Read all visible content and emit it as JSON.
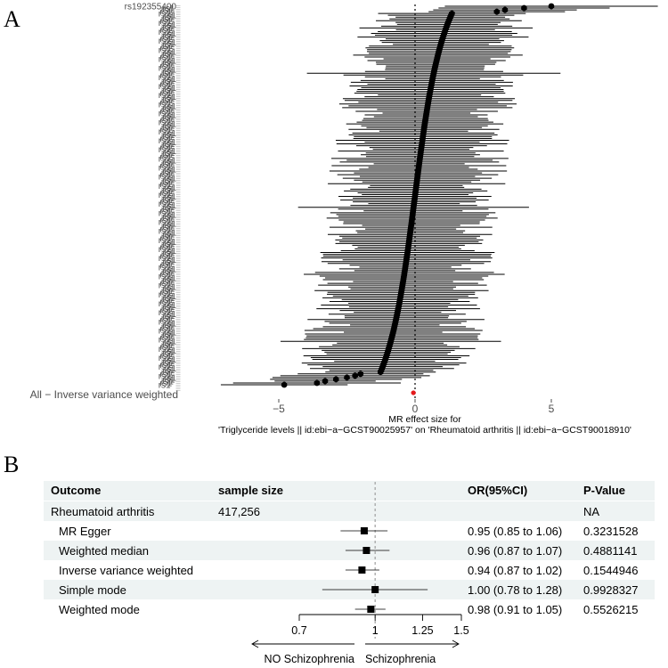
{
  "panel_a": {
    "label": "A",
    "overall_label": "All − Inverse variance weighted",
    "snp_labels": [
      "rs1",
      "rs1",
      "rs1",
      "rs1",
      "rs1",
      "rs1",
      "rs1",
      "rs1",
      "rs192355400"
    ],
    "xlabel_line1": "MR effect size for",
    "xlabel_line2": "'Triglyceride levels || id:ebi−a−GCST90025957' on 'Rheumatoid arthritis || id:ebi−a−GCST90018910'",
    "x_ticks": [
      "−5",
      "0",
      "5"
    ]
  },
  "panel_b": {
    "label": "B",
    "headers": {
      "outcome": "Outcome",
      "sample_size": "sample size",
      "or": "OR(95%CI)",
      "p": "P-Value"
    },
    "rows": [
      {
        "outcome": "Rheumatoid arthritis",
        "sample_size": "417,256",
        "or": "",
        "p": "NA"
      },
      {
        "outcome": "MR Egger",
        "sample_size": "",
        "or": "0.95 (0.85 to 1.06)",
        "p": "0.3231528"
      },
      {
        "outcome": "Weighted median",
        "sample_size": "",
        "or": "0.96 (0.87 to 1.07)",
        "p": "0.4881141"
      },
      {
        "outcome": "Inverse variance weighted",
        "sample_size": "",
        "or": "0.94 (0.87 to 1.02)",
        "p": "0.1544946"
      },
      {
        "outcome": "Simple mode",
        "sample_size": "",
        "or": "1.00 (0.78 to 1.28)",
        "p": "0.9928327"
      },
      {
        "outcome": "Weighted mode",
        "sample_size": "",
        "or": "0.98 (0.91 to 1.05)",
        "p": "0.5526215"
      }
    ],
    "x_ticks": [
      "0.7",
      "1",
      "1.25",
      "1.5"
    ],
    "left_label": "NO Schizophrenia",
    "right_label": "Schizophrenia"
  },
  "colors": {
    "point": "#000000",
    "ci_line": "#000000",
    "overall": "#e41a1c",
    "axis_text": "#4d4d4d",
    "stripe": "#eef3f3"
  },
  "chart_data": [
    {
      "type": "scatter",
      "title": "",
      "xlabel": "MR effect size for 'Triglyceride levels || id:ebi−a−GCST90025957' on 'Rheumatoid arthritis || id:ebi−a−GCST90018910'",
      "ylabel": "",
      "xlim": [
        -7.5,
        8.5
      ],
      "xticks": [
        -5,
        0,
        5
      ],
      "reference_line": 0,
      "n_snps": 210,
      "effect_range": [
        -4.8,
        5.0
      ],
      "overall": {
        "label": "All − Inverse variance weighted",
        "estimate": -0.06,
        "ci": [
          -0.14,
          0.02
        ]
      }
    },
    {
      "type": "forest",
      "title": "",
      "log_scale": true,
      "xlim": [
        0.7,
        1.5
      ],
      "xticks": [
        0.7,
        1,
        1.25,
        1.5
      ],
      "reference_line": 1,
      "series": [
        {
          "name": "MR Egger",
          "or": 0.95,
          "lower": 0.85,
          "upper": 1.06,
          "p": 0.3231528
        },
        {
          "name": "Weighted median",
          "or": 0.96,
          "lower": 0.87,
          "upper": 1.07,
          "p": 0.4881141
        },
        {
          "name": "Inverse variance weighted",
          "or": 0.94,
          "lower": 0.87,
          "upper": 1.02,
          "p": 0.1544946
        },
        {
          "name": "Simple mode",
          "or": 1.0,
          "lower": 0.78,
          "upper": 1.28,
          "p": 0.9928327
        },
        {
          "name": "Weighted mode",
          "or": 0.98,
          "lower": 0.91,
          "upper": 1.05,
          "p": 0.5526215
        }
      ]
    }
  ]
}
